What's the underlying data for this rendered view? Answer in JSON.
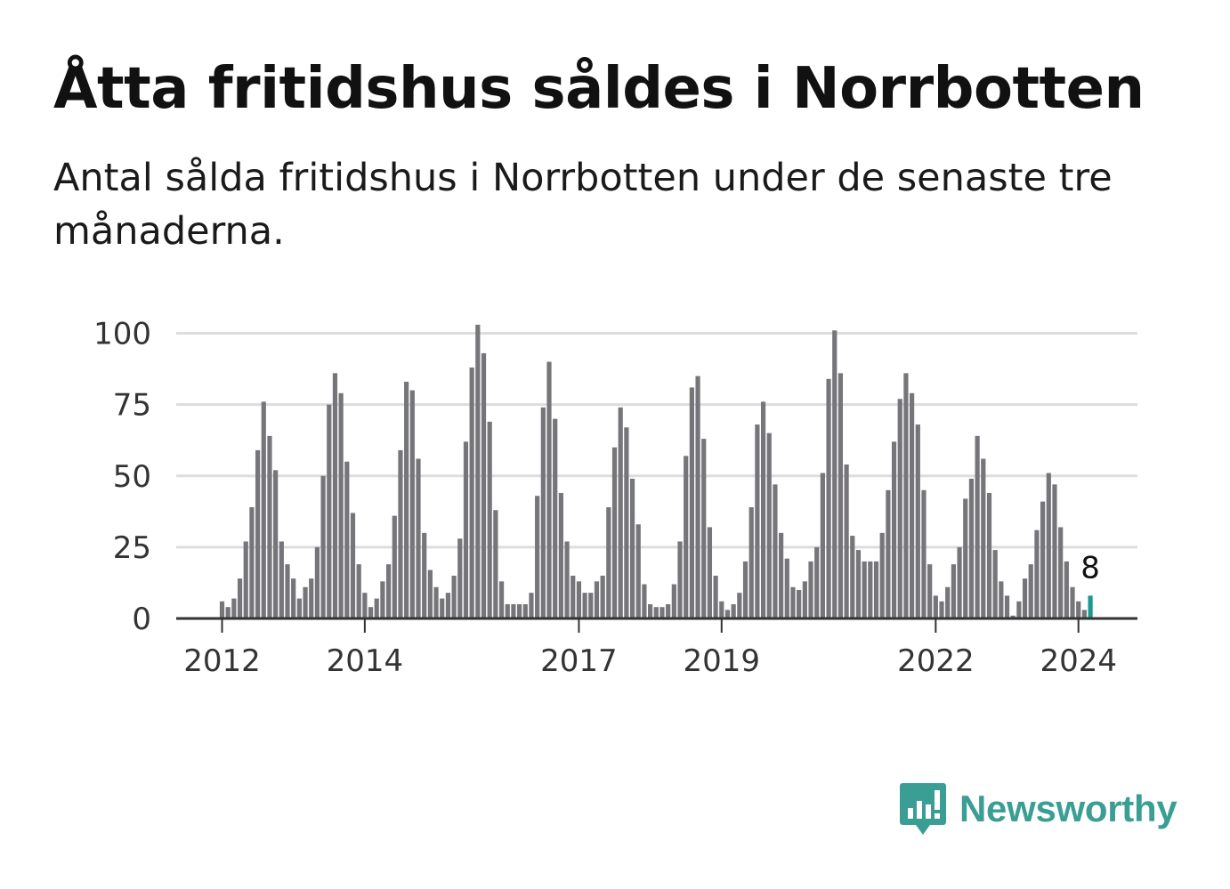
{
  "title": "Åtta fritidshus såldes i Norrbotten",
  "subtitle": "Antal sålda fritidshus i Norrbotten under de senaste tre månaderna.",
  "brand": {
    "name": "Newsworthy",
    "icon": "bar-chart-speech-bubble-icon",
    "color": "#3a9e94"
  },
  "colors": {
    "bar": "#76767a",
    "highlight": "#1a9a8e",
    "grid": "#dddddd",
    "axis": "#333333"
  },
  "chart_data": {
    "type": "bar",
    "title": "Åtta fritidshus såldes i Norrbotten",
    "xlabel": "",
    "ylabel": "",
    "ylim": [
      0,
      105
    ],
    "grid": true,
    "yticks": [
      0,
      25,
      50,
      75,
      100
    ],
    "xticks": [
      {
        "label": "2012",
        "year": 2012
      },
      {
        "label": "2014",
        "year": 2014
      },
      {
        "label": "2017",
        "year": 2017
      },
      {
        "label": "2019",
        "year": 2019
      },
      {
        "label": "2022",
        "year": 2022
      },
      {
        "label": "2024",
        "year": 2024
      }
    ],
    "start": {
      "year": 2012,
      "month": 1
    },
    "highlight_label": "8",
    "highlight_index": 146,
    "series": [
      {
        "name": "Antal sålda fritidshus",
        "values": [
          6,
          4,
          7,
          14,
          27,
          39,
          59,
          76,
          64,
          52,
          27,
          19,
          14,
          7,
          11,
          14,
          25,
          50,
          75,
          86,
          79,
          55,
          37,
          19,
          9,
          4,
          7,
          13,
          19,
          36,
          59,
          83,
          80,
          56,
          30,
          17,
          11,
          7,
          9,
          15,
          28,
          62,
          88,
          103,
          93,
          69,
          38,
          13,
          5,
          5,
          5,
          5,
          9,
          43,
          74,
          90,
          70,
          44,
          27,
          15,
          13,
          9,
          9,
          13,
          15,
          39,
          60,
          74,
          67,
          49,
          33,
          12,
          5,
          4,
          4,
          5,
          12,
          27,
          57,
          81,
          85,
          63,
          32,
          15,
          6,
          3,
          5,
          9,
          20,
          39,
          68,
          76,
          65,
          47,
          30,
          21,
          11,
          10,
          13,
          20,
          25,
          51,
          84,
          101,
          86,
          54,
          29,
          24,
          20,
          20,
          20,
          30,
          45,
          62,
          77,
          86,
          79,
          68,
          45,
          19,
          8,
          6,
          11,
          19,
          25,
          42,
          49,
          64,
          56,
          44,
          24,
          13,
          8,
          1,
          6,
          14,
          19,
          31,
          41,
          51,
          47,
          32,
          20,
          11,
          6,
          3,
          8
        ]
      }
    ]
  }
}
